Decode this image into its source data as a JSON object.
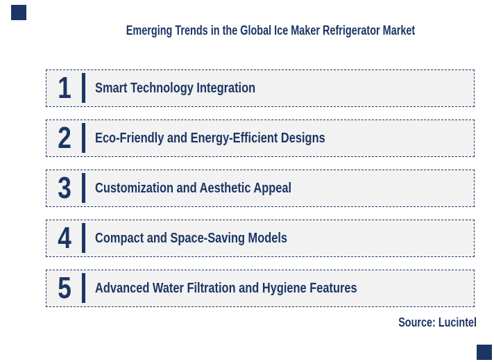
{
  "header": {
    "title": "Emerging Trends in the Global Ice Maker Refrigerator Market"
  },
  "trends": [
    {
      "number": "1",
      "label": "Smart Technology Integration"
    },
    {
      "number": "2",
      "label": "Eco-Friendly and Energy-Efficient Designs"
    },
    {
      "number": "3",
      "label": "Customization and Aesthetic Appeal"
    },
    {
      "number": "4",
      "label": "Compact and Space-Saving Models"
    },
    {
      "number": "5",
      "label": "Advanced Water Filtration and Hygiene Features"
    }
  ],
  "footer": {
    "source": "Source: Lucintel"
  },
  "colors": {
    "navy": "#1C3564",
    "box_fill": "#F2F2F2",
    "background": "#FFFFFF"
  },
  "decorations": {
    "top_left": "navy-corner-square",
    "bottom_right": "navy-corner-square"
  }
}
